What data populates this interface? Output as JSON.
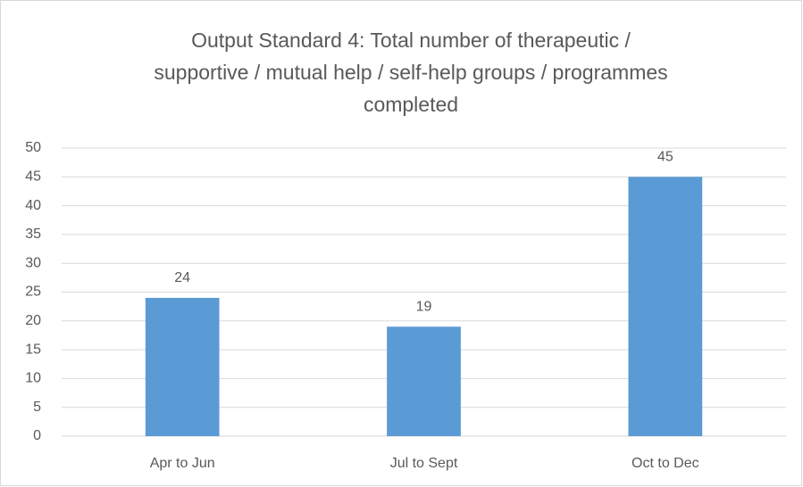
{
  "chart_data": {
    "type": "bar",
    "title": [
      "Output Standard 4: Total number of therapeutic /",
      "supportive / mutual help / self-help groups / programmes",
      "completed"
    ],
    "categories": [
      "Apr to Jun",
      "Jul to Sept",
      "Oct to Dec"
    ],
    "values": [
      24,
      19,
      45
    ],
    "color": "#5b9bd5",
    "ylim": [
      0,
      50
    ],
    "yticks": [
      0,
      5,
      10,
      15,
      20,
      25,
      30,
      35,
      40,
      45,
      50
    ],
    "grid": true,
    "data_labels": true
  }
}
